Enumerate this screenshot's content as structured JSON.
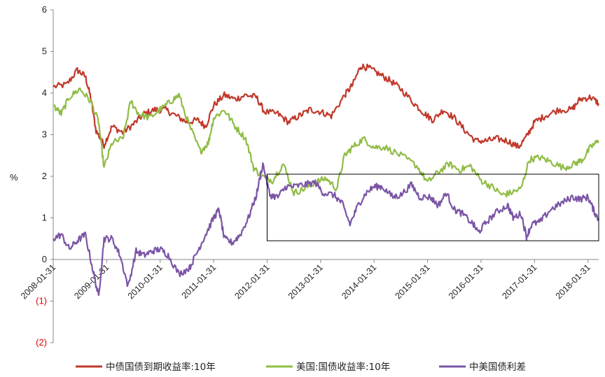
{
  "chart_data": {
    "type": "line",
    "ylabel": "%",
    "ylim": [
      -2,
      6
    ],
    "yticks": [
      "6",
      "5",
      "4",
      "3",
      "2",
      "1",
      "0",
      "(1)",
      "(2)"
    ],
    "xticks": [
      "2008-01-31",
      "2009-01-31",
      "2010-01-31",
      "2011-01-31",
      "2012-01-31",
      "2013-01-31",
      "2014-01-31",
      "2015-01-31",
      "2016-01-31",
      "2017-01-31",
      "2018-01-31"
    ],
    "xrange": [
      2008.0,
      2018.2
    ],
    "grid": false,
    "legend_position": "bottom",
    "highlight_box": {
      "x": [
        2012.0,
        2018.2
      ],
      "y": [
        0.45,
        2.05
      ]
    },
    "series": [
      {
        "name": "中债国债到期收益率:10年",
        "color": "#c0392b",
        "points": [
          [
            2008.0,
            4.15
          ],
          [
            2008.25,
            4.2
          ],
          [
            2008.45,
            4.55
          ],
          [
            2008.6,
            4.4
          ],
          [
            2008.7,
            3.9
          ],
          [
            2008.8,
            3.1
          ],
          [
            2008.95,
            2.75
          ],
          [
            2009.1,
            3.2
          ],
          [
            2009.3,
            3.05
          ],
          [
            2009.5,
            3.25
          ],
          [
            2009.7,
            3.5
          ],
          [
            2009.9,
            3.6
          ],
          [
            2010.1,
            3.6
          ],
          [
            2010.3,
            3.45
          ],
          [
            2010.5,
            3.3
          ],
          [
            2010.7,
            3.35
          ],
          [
            2010.85,
            3.2
          ],
          [
            2011.0,
            3.7
          ],
          [
            2011.2,
            3.95
          ],
          [
            2011.4,
            3.85
          ],
          [
            2011.6,
            3.95
          ],
          [
            2011.8,
            3.9
          ],
          [
            2011.95,
            3.55
          ],
          [
            2012.2,
            3.5
          ],
          [
            2012.4,
            3.3
          ],
          [
            2012.6,
            3.45
          ],
          [
            2012.8,
            3.6
          ],
          [
            2013.0,
            3.55
          ],
          [
            2013.2,
            3.45
          ],
          [
            2013.45,
            3.95
          ],
          [
            2013.6,
            4.2
          ],
          [
            2013.75,
            4.65
          ],
          [
            2013.9,
            4.6
          ],
          [
            2014.1,
            4.45
          ],
          [
            2014.3,
            4.3
          ],
          [
            2014.5,
            4.1
          ],
          [
            2014.75,
            3.75
          ],
          [
            2014.95,
            3.5
          ],
          [
            2015.1,
            3.35
          ],
          [
            2015.3,
            3.6
          ],
          [
            2015.5,
            3.4
          ],
          [
            2015.7,
            3.1
          ],
          [
            2015.9,
            2.85
          ],
          [
            2016.1,
            2.85
          ],
          [
            2016.3,
            2.9
          ],
          [
            2016.5,
            2.85
          ],
          [
            2016.7,
            2.7
          ],
          [
            2016.85,
            2.95
          ],
          [
            2017.0,
            3.3
          ],
          [
            2017.2,
            3.45
          ],
          [
            2017.45,
            3.6
          ],
          [
            2017.7,
            3.6
          ],
          [
            2017.85,
            3.85
          ],
          [
            2018.05,
            3.9
          ],
          [
            2018.2,
            3.75
          ]
        ]
      },
      {
        "name": "美国:国债收益率:10年",
        "color": "#8fbc45",
        "points": [
          [
            2008.0,
            3.7
          ],
          [
            2008.15,
            3.5
          ],
          [
            2008.3,
            3.9
          ],
          [
            2008.5,
            4.1
          ],
          [
            2008.7,
            3.8
          ],
          [
            2008.85,
            3.3
          ],
          [
            2008.95,
            2.2
          ],
          [
            2009.1,
            2.8
          ],
          [
            2009.3,
            2.9
          ],
          [
            2009.45,
            3.8
          ],
          [
            2009.6,
            3.5
          ],
          [
            2009.8,
            3.4
          ],
          [
            2010.0,
            3.6
          ],
          [
            2010.2,
            3.8
          ],
          [
            2010.35,
            3.95
          ],
          [
            2010.55,
            3.2
          ],
          [
            2010.75,
            2.6
          ],
          [
            2010.9,
            2.8
          ],
          [
            2011.0,
            3.4
          ],
          [
            2011.2,
            3.6
          ],
          [
            2011.4,
            3.2
          ],
          [
            2011.6,
            2.9
          ],
          [
            2011.75,
            2.2
          ],
          [
            2011.9,
            2.0
          ],
          [
            2012.1,
            1.9
          ],
          [
            2012.3,
            2.3
          ],
          [
            2012.5,
            1.6
          ],
          [
            2012.7,
            1.7
          ],
          [
            2012.9,
            1.85
          ],
          [
            2013.1,
            1.95
          ],
          [
            2013.3,
            1.7
          ],
          [
            2013.45,
            2.5
          ],
          [
            2013.6,
            2.7
          ],
          [
            2013.8,
            2.9
          ],
          [
            2014.0,
            2.7
          ],
          [
            2014.2,
            2.7
          ],
          [
            2014.5,
            2.5
          ],
          [
            2014.8,
            2.25
          ],
          [
            2015.0,
            1.85
          ],
          [
            2015.2,
            2.1
          ],
          [
            2015.4,
            2.3
          ],
          [
            2015.6,
            2.15
          ],
          [
            2015.8,
            2.25
          ],
          [
            2016.0,
            1.9
          ],
          [
            2016.2,
            1.75
          ],
          [
            2016.4,
            1.55
          ],
          [
            2016.55,
            1.6
          ],
          [
            2016.75,
            1.7
          ],
          [
            2016.9,
            2.4
          ],
          [
            2017.1,
            2.45
          ],
          [
            2017.3,
            2.35
          ],
          [
            2017.55,
            2.2
          ],
          [
            2017.75,
            2.3
          ],
          [
            2017.9,
            2.4
          ],
          [
            2018.05,
            2.7
          ],
          [
            2018.2,
            2.85
          ]
        ]
      },
      {
        "name": "中美国债利差",
        "color": "#7b55a5",
        "points": [
          [
            2008.0,
            0.5
          ],
          [
            2008.15,
            0.6
          ],
          [
            2008.3,
            0.25
          ],
          [
            2008.45,
            0.45
          ],
          [
            2008.6,
            0.6
          ],
          [
            2008.75,
            -0.3
          ],
          [
            2008.85,
            -0.9
          ],
          [
            2008.95,
            0.5
          ],
          [
            2009.1,
            0.5
          ],
          [
            2009.25,
            0.1
          ],
          [
            2009.4,
            -0.65
          ],
          [
            2009.55,
            0.2
          ],
          [
            2009.7,
            0.1
          ],
          [
            2009.85,
            0.2
          ],
          [
            2010.0,
            0.25
          ],
          [
            2010.15,
            0.1
          ],
          [
            2010.35,
            -0.35
          ],
          [
            2010.55,
            -0.2
          ],
          [
            2010.7,
            0.2
          ],
          [
            2010.85,
            0.6
          ],
          [
            2011.0,
            1.0
          ],
          [
            2011.1,
            1.2
          ],
          [
            2011.2,
            0.5
          ],
          [
            2011.35,
            0.4
          ],
          [
            2011.5,
            0.6
          ],
          [
            2011.65,
            1.0
          ],
          [
            2011.8,
            1.55
          ],
          [
            2011.92,
            2.3
          ],
          [
            2012.05,
            1.55
          ],
          [
            2012.2,
            1.5
          ],
          [
            2012.35,
            1.75
          ],
          [
            2012.5,
            1.75
          ],
          [
            2012.7,
            1.8
          ],
          [
            2012.9,
            1.85
          ],
          [
            2013.05,
            1.6
          ],
          [
            2013.25,
            1.55
          ],
          [
            2013.4,
            1.35
          ],
          [
            2013.55,
            0.85
          ],
          [
            2013.7,
            1.3
          ],
          [
            2013.85,
            1.6
          ],
          [
            2014.0,
            1.75
          ],
          [
            2014.15,
            1.75
          ],
          [
            2014.35,
            1.5
          ],
          [
            2014.5,
            1.55
          ],
          [
            2014.7,
            1.8
          ],
          [
            2014.85,
            1.5
          ],
          [
            2015.05,
            1.5
          ],
          [
            2015.2,
            1.3
          ],
          [
            2015.35,
            1.6
          ],
          [
            2015.5,
            1.2
          ],
          [
            2015.65,
            1.1
          ],
          [
            2015.85,
            0.85
          ],
          [
            2015.95,
            0.65
          ],
          [
            2016.1,
            0.9
          ],
          [
            2016.3,
            1.15
          ],
          [
            2016.5,
            1.3
          ],
          [
            2016.6,
            1.0
          ],
          [
            2016.75,
            1.1
          ],
          [
            2016.85,
            0.55
          ],
          [
            2016.95,
            0.85
          ],
          [
            2017.1,
            0.9
          ],
          [
            2017.3,
            1.2
          ],
          [
            2017.5,
            1.35
          ],
          [
            2017.7,
            1.5
          ],
          [
            2017.85,
            1.45
          ],
          [
            2018.0,
            1.5
          ],
          [
            2018.1,
            1.2
          ],
          [
            2018.2,
            0.95
          ]
        ]
      }
    ]
  }
}
